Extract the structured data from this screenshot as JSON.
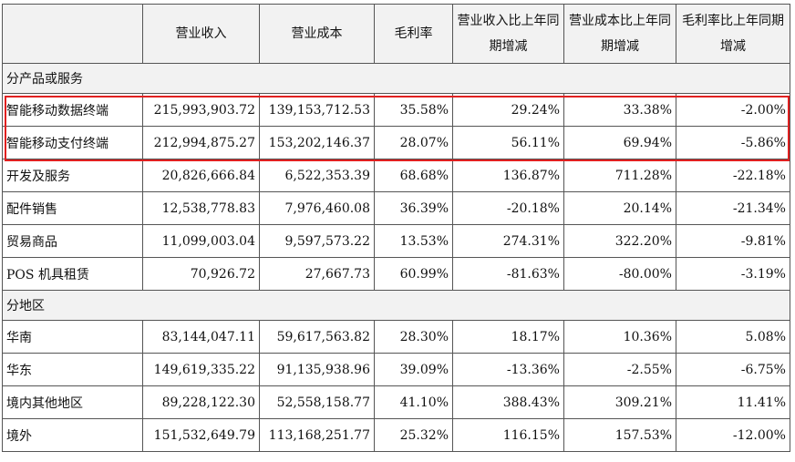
{
  "headers": [
    "",
    "营业收入",
    "营业成本",
    "毛利率",
    "营业收入比上年同期增减",
    "营业成本比上年同期增减",
    "毛利率比上年同期增减"
  ],
  "sections": [
    {
      "title": "分产品或服务",
      "rows": [
        {
          "label": "智能移动数据终端",
          "values": [
            "215,993,903.72",
            "139,153,712.53",
            "35.58%",
            "29.24%",
            "33.38%",
            "-2.00%"
          ]
        },
        {
          "label": "智能移动支付终端",
          "values": [
            "212,994,875.27",
            "153,202,146.37",
            "28.07%",
            "56.11%",
            "69.94%",
            "-5.86%"
          ]
        },
        {
          "label": "开发及服务",
          "values": [
            "20,826,666.84",
            "6,522,353.39",
            "68.68%",
            "136.87%",
            "711.28%",
            "-22.18%"
          ]
        },
        {
          "label": "配件销售",
          "values": [
            "12,538,778.83",
            "7,976,460.08",
            "36.39%",
            "-20.18%",
            "20.14%",
            "-21.34%"
          ]
        },
        {
          "label": "贸易商品",
          "values": [
            "11,099,003.04",
            "9,597,573.22",
            "13.53%",
            "274.31%",
            "322.20%",
            "-9.81%"
          ]
        },
        {
          "label": "POS 机具租赁",
          "values": [
            "70,926.72",
            "27,667.73",
            "60.99%",
            "-81.63%",
            "-80.00%",
            "-3.19%"
          ]
        }
      ]
    },
    {
      "title": "分地区",
      "rows": [
        {
          "label": "华南",
          "values": [
            "83,144,047.11",
            "59,617,563.82",
            "28.30%",
            "18.17%",
            "10.36%",
            "5.08%"
          ]
        },
        {
          "label": "华东",
          "values": [
            "149,619,335.22",
            "91,135,938.96",
            "39.09%",
            "-13.36%",
            "-2.55%",
            "-6.75%"
          ]
        },
        {
          "label": "境内其他地区",
          "values": [
            "89,228,122.30",
            "52,558,158.77",
            "41.10%",
            "388.43%",
            "309.21%",
            "11.41%"
          ]
        },
        {
          "label": "境外",
          "values": [
            "151,532,649.79",
            "113,168,251.77",
            "25.32%",
            "116.15%",
            "157.53%",
            "-12.00%"
          ]
        }
      ]
    }
  ],
  "highlight_color": "#e02020"
}
